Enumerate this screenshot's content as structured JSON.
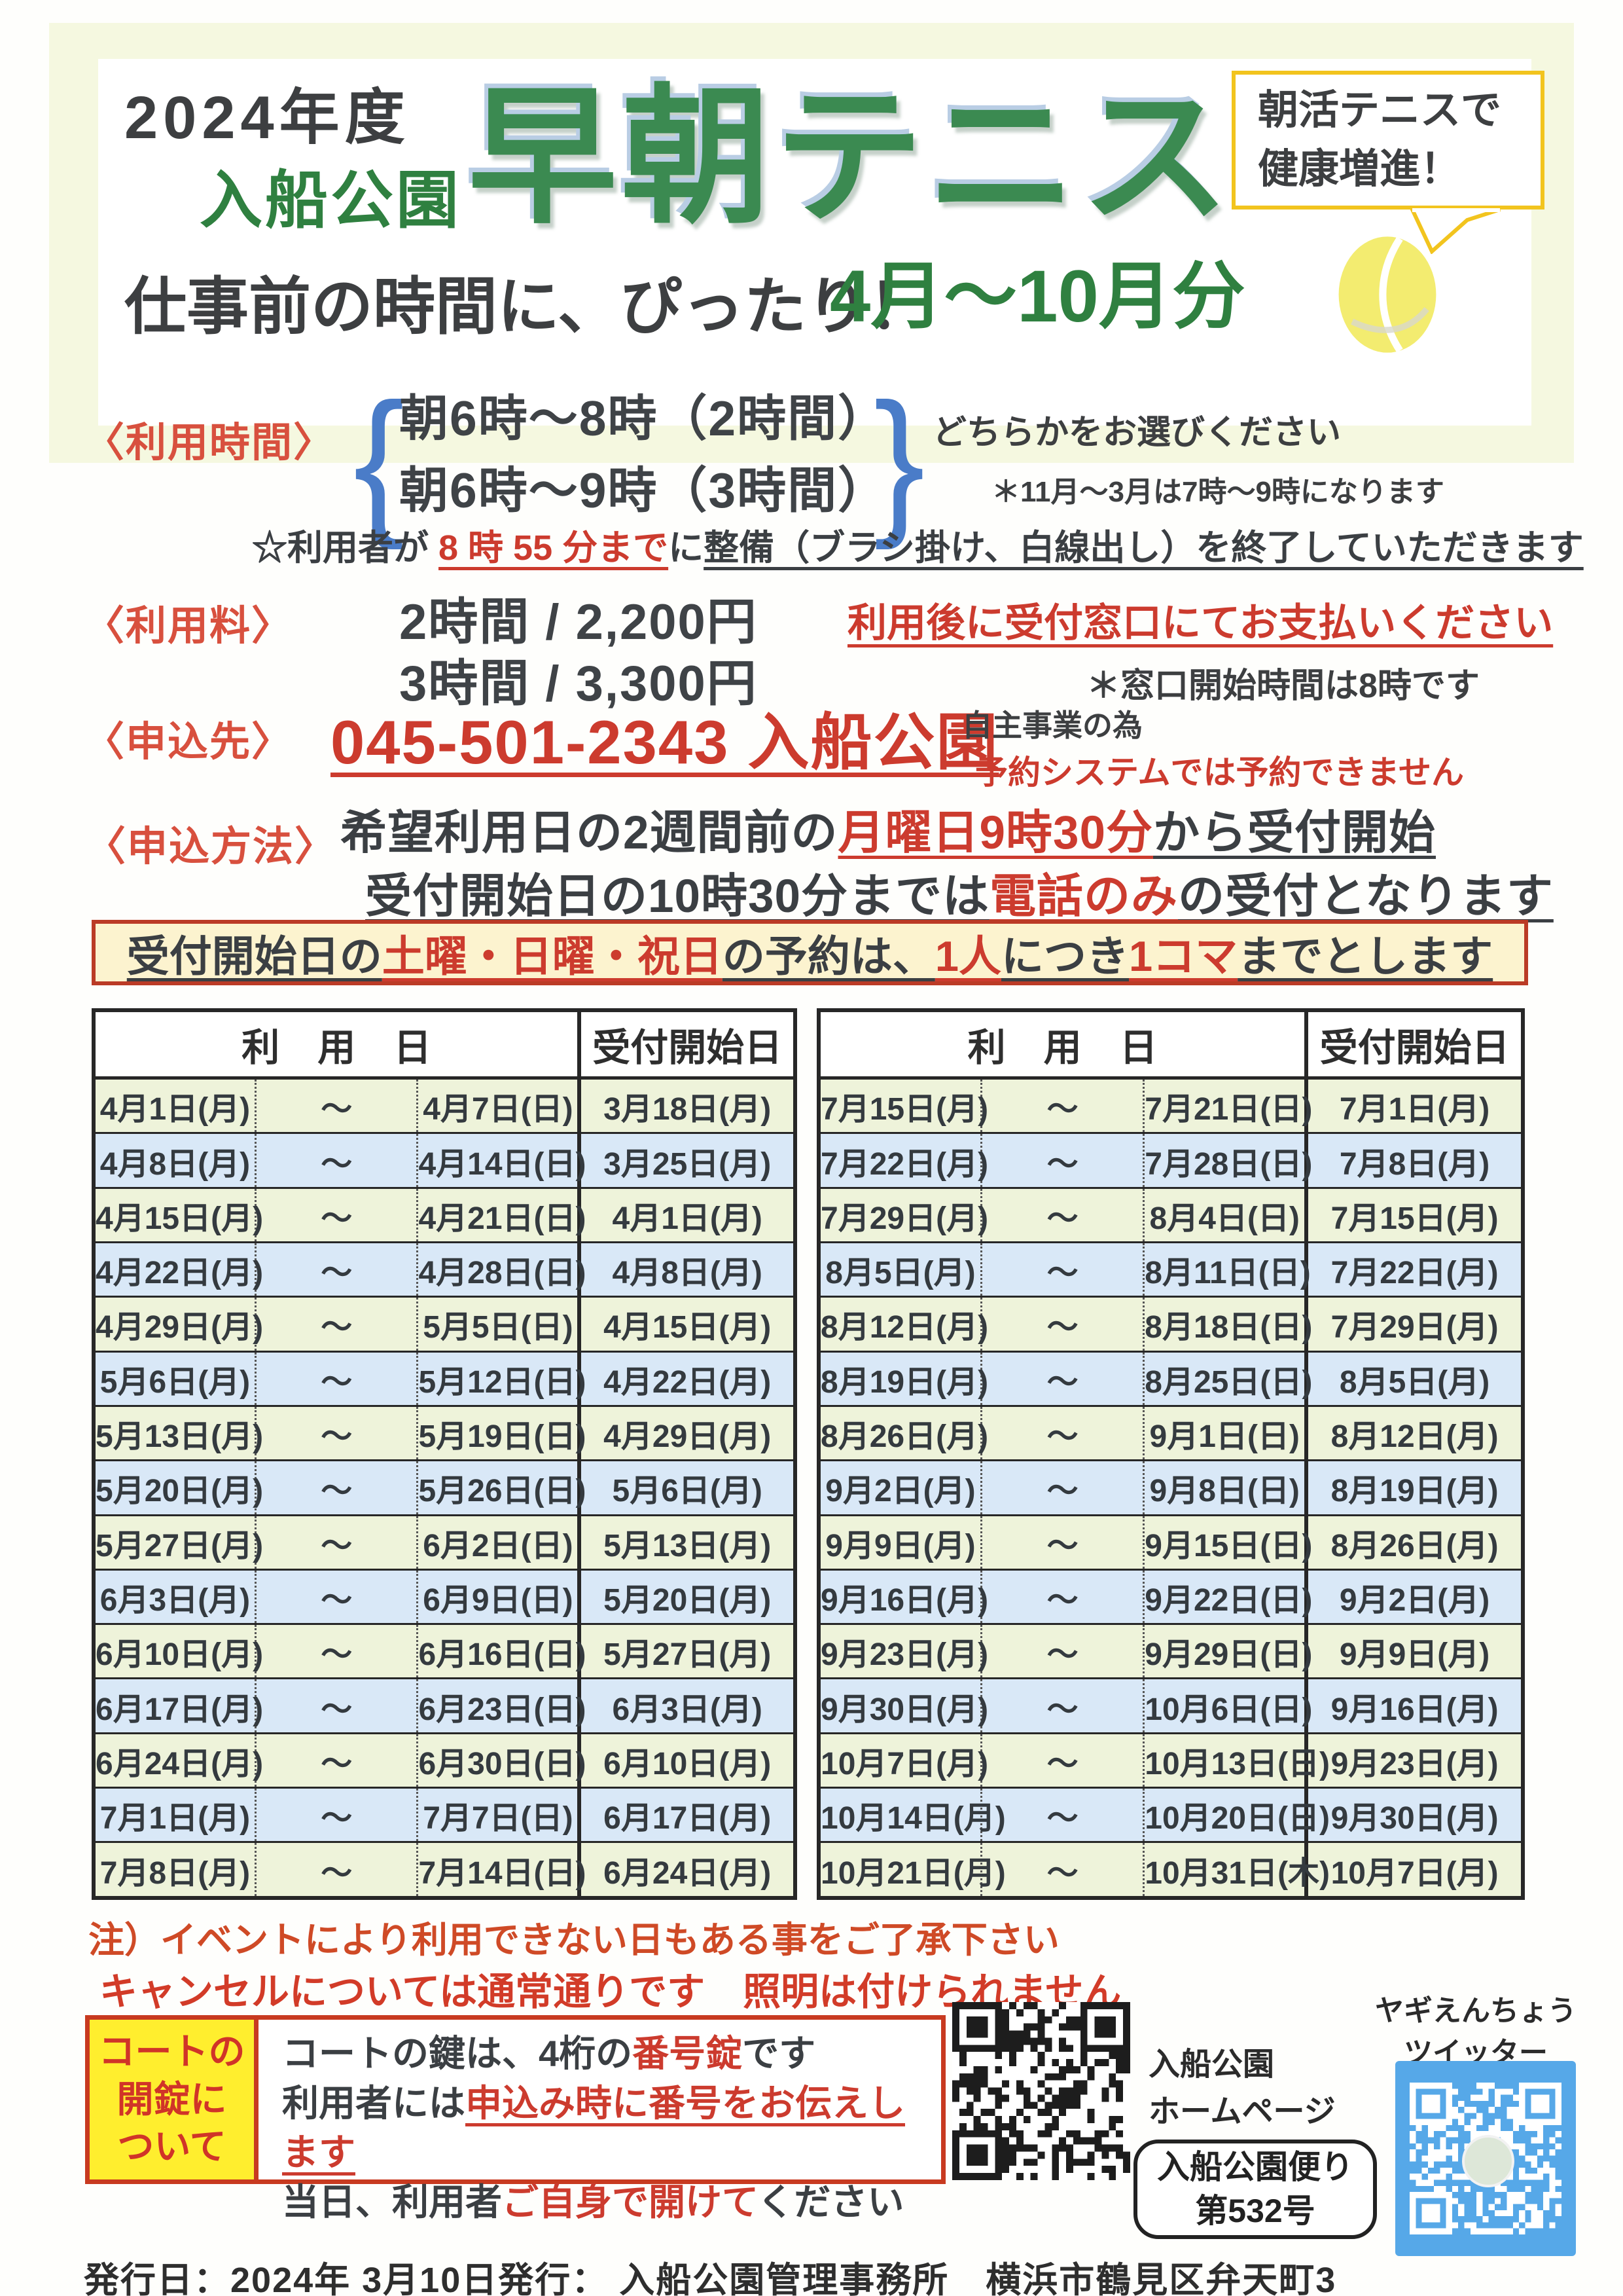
{
  "header": {
    "year": "2024年度",
    "park": "入船公園",
    "title": "早朝テニス",
    "tagline": "仕事前の時間に、ぴったり！",
    "period": "4月～10月分",
    "bubble_line1": "朝活テニスで",
    "bubble_line2": "健康増進！"
  },
  "usage_time": {
    "label": "〈利用時間〉",
    "brace_open": "{",
    "brace_close": "}",
    "option1": "朝6時～8時（2時間）",
    "option2": "朝6時～9時（3時間）",
    "choose_note": "どちらかをお選びください",
    "winter_note": "＊11月～3月は7時～9時になります",
    "star_note_segments": [
      {
        "text": "☆利用者が ",
        "color": "dark",
        "underline": false
      },
      {
        "text": "8 時 55 分まで",
        "color": "red",
        "underline": true
      },
      {
        "text": "に",
        "color": "dark",
        "underline": false
      },
      {
        "text": "整備（ブラシ掛け、白線出し）を終了していただきます",
        "color": "dark",
        "underline": true
      }
    ]
  },
  "fee": {
    "label": "〈利用料〉",
    "line1": "2時間 / 2,200円",
    "line2": "3時間 / 3,300円",
    "pay_note": "利用後に受付窓口にてお支払いください",
    "window_note": "＊窓口開始時間は8時です"
  },
  "contact": {
    "label": "〈申込先〉",
    "phone": "045-501-2343 入船公園",
    "note1": "自主事業の為",
    "note2": "予約システムでは予約できません"
  },
  "how_to_apply": {
    "label": "〈申込方法〉",
    "line1_segments": [
      {
        "text": "希望利用日の2週間前の",
        "color": "dark",
        "underline": false
      },
      {
        "text": "月曜日9時30分",
        "color": "red",
        "underline": true
      },
      {
        "text": "から受付開始",
        "color": "dark",
        "underline": true
      }
    ],
    "line2_segments": [
      {
        "text": "受付開始日の10時30分までは",
        "color": "dark",
        "underline": true
      },
      {
        "text": "電話のみ",
        "color": "red",
        "underline": true
      },
      {
        "text": "の受付となります",
        "color": "dark",
        "underline": true
      }
    ]
  },
  "banner_segments": [
    {
      "text": "受付開始日の",
      "color": "dark",
      "underline": true
    },
    {
      "text": "土曜・日曜・祝日",
      "color": "red",
      "underline": true
    },
    {
      "text": "の予約は、",
      "color": "dark",
      "underline": true
    },
    {
      "text": "1人",
      "color": "red",
      "underline": true
    },
    {
      "text": "につき",
      "color": "dark",
      "underline": true
    },
    {
      "text": "1コマ",
      "color": "red",
      "underline": true
    },
    {
      "text": "までとします",
      "color": "dark",
      "underline": true
    }
  ],
  "tables": {
    "usage_header": "利　用　日",
    "open_header": "受付開始日",
    "tilde": "～",
    "left_rows": [
      {
        "start": "4月1日(月)",
        "end": "4月7日(日)",
        "open": "3月18日(月)"
      },
      {
        "start": "4月8日(月)",
        "end": "4月14日(日)",
        "open": "3月25日(月)"
      },
      {
        "start": "4月15日(月)",
        "end": "4月21日(日)",
        "open": "4月1日(月)"
      },
      {
        "start": "4月22日(月)",
        "end": "4月28日(日)",
        "open": "4月8日(月)"
      },
      {
        "start": "4月29日(月)",
        "end": "5月5日(日)",
        "open": "4月15日(月)"
      },
      {
        "start": "5月6日(月)",
        "end": "5月12日(日)",
        "open": "4月22日(月)"
      },
      {
        "start": "5月13日(月)",
        "end": "5月19日(日)",
        "open": "4月29日(月)"
      },
      {
        "start": "5月20日(月)",
        "end": "5月26日(日)",
        "open": "5月6日(月)"
      },
      {
        "start": "5月27日(月)",
        "end": "6月2日(日)",
        "open": "5月13日(月)"
      },
      {
        "start": "6月3日(月)",
        "end": "6月9日(日)",
        "open": "5月20日(月)"
      },
      {
        "start": "6月10日(月)",
        "end": "6月16日(日)",
        "open": "5月27日(月)"
      },
      {
        "start": "6月17日(月)",
        "end": "6月23日(日)",
        "open": "6月3日(月)"
      },
      {
        "start": "6月24日(月)",
        "end": "6月30日(日)",
        "open": "6月10日(月)"
      },
      {
        "start": "7月1日(月)",
        "end": "7月7日(日)",
        "open": "6月17日(月)"
      },
      {
        "start": "7月8日(月)",
        "end": "7月14日(日)",
        "open": "6月24日(月)"
      }
    ],
    "right_rows": [
      {
        "start": "7月15日(月)",
        "end": "7月21日(日)",
        "open": "7月1日(月)"
      },
      {
        "start": "7月22日(月)",
        "end": "7月28日(日)",
        "open": "7月8日(月)"
      },
      {
        "start": "7月29日(月)",
        "end": "8月4日(日)",
        "open": "7月15日(月)"
      },
      {
        "start": "8月5日(月)",
        "end": "8月11日(日)",
        "open": "7月22日(月)"
      },
      {
        "start": "8月12日(月)",
        "end": "8月18日(日)",
        "open": "7月29日(月)"
      },
      {
        "start": "8月19日(月)",
        "end": "8月25日(日)",
        "open": "8月5日(月)"
      },
      {
        "start": "8月26日(月)",
        "end": "9月1日(日)",
        "open": "8月12日(月)"
      },
      {
        "start": "9月2日(月)",
        "end": "9月8日(日)",
        "open": "8月19日(月)"
      },
      {
        "start": "9月9日(月)",
        "end": "9月15日(日)",
        "open": "8月26日(月)"
      },
      {
        "start": "9月16日(月)",
        "end": "9月22日(日)",
        "open": "9月2日(月)"
      },
      {
        "start": "9月23日(月)",
        "end": "9月29日(日)",
        "open": "9月9日(月)"
      },
      {
        "start": "9月30日(月)",
        "end": "10月6日(日)",
        "open": "9月16日(月)"
      },
      {
        "start": "10月7日(月)",
        "end": "10月13日(日)",
        "open": "9月23日(月)"
      },
      {
        "start": "10月14日(月)",
        "end": "10月20日(日)",
        "open": "9月30日(月)"
      },
      {
        "start": "10月21日(月)",
        "end": "10月31日(木)",
        "end_red": true,
        "open": "10月7日(月)"
      }
    ]
  },
  "notes": {
    "note1": "注）イベントにより利用できない日もある事をご了承下さい",
    "note2": "キャンセルについては通常通りです　照明は付けられません"
  },
  "unlock_box": {
    "label_line1": "コートの",
    "label_line2": "開錠に",
    "label_line3": "ついて",
    "line1_segments": [
      {
        "text": "コートの鍵は、4桁の",
        "color": "dark",
        "underline": false
      },
      {
        "text": "番号錠",
        "color": "red",
        "underline": false
      },
      {
        "text": "です",
        "color": "dark",
        "underline": false
      }
    ],
    "line2_segments": [
      {
        "text": "利用者には",
        "color": "dark",
        "underline": false
      },
      {
        "text": "申込み時に番号をお伝えします",
        "color": "red",
        "underline": true
      }
    ],
    "line3_segments": [
      {
        "text": "当日、利用者",
        "color": "dark",
        "underline": false
      },
      {
        "text": "ご自身で開けて",
        "color": "red",
        "underline": false
      },
      {
        "text": "ください",
        "color": "dark",
        "underline": false
      }
    ]
  },
  "qr_section": {
    "homepage_label1": "入船公園",
    "homepage_label2": "ホームページ",
    "newsletter_line1": "入船公園便り",
    "newsletter_line2": "第532号",
    "twitter_line1": "ヤギえんちょう",
    "twitter_line2": "ツイッター"
  },
  "footer": "発行日：2024年 3月10日発行： 入船公園管理事務所　横浜市鶴見区弁天町3",
  "colors": {
    "band_bg": "#f5f8e0",
    "title_green": "#3b8a51",
    "label_red": "#d8503e",
    "red": "#cc3b2e",
    "table_red": "#b54545",
    "bright_red": "#ea3420",
    "row_green": "#eef3da",
    "row_blue": "#d9e8f7",
    "banner_bg": "#fcf3cf",
    "box_yellow": "#ffee2e",
    "qr_blue": "#56a8e8"
  }
}
